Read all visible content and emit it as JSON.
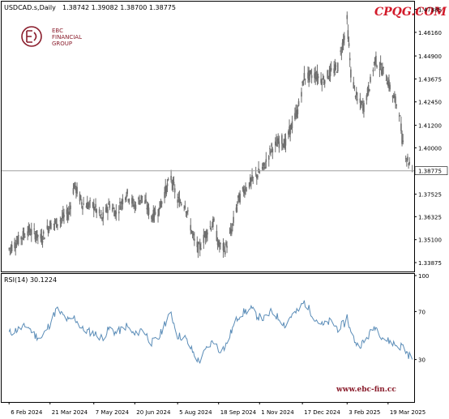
{
  "header": {
    "symbol": "USDCAD.s,Daily",
    "ohlc": "1.38742 1.39082 1.38700 1.38775",
    "watermark": "CPQG.COM"
  },
  "logo": {
    "line1": "EBC",
    "line2": "FINANCIAL",
    "line3": "GROUP"
  },
  "rsi_panel": {
    "label": "RSI(14) 30.1224",
    "website": "www.ebc-fin.cc"
  },
  "colors": {
    "candle": "#6f6f6f",
    "rsi": "#5b8db8",
    "grid": "#b0b0b0",
    "watermark": "#d21a2a",
    "logo": "#8a1d2c"
  },
  "chart_data": [
    {
      "type": "candlestick",
      "title": "USDCAD.s,Daily",
      "price_ticks": [
        1.47385,
        1.4616,
        1.449,
        1.43675,
        1.4245,
        1.412,
        1.4,
        1.37525,
        1.36325,
        1.351,
        1.33875
      ],
      "price_tick_labels": [
        "1.47385",
        "1.46160",
        "1.44900",
        "1.43675",
        "1.42450",
        "1.41200",
        "1.40000",
        "1.37525",
        "1.36325",
        "1.35100",
        "1.33875"
      ],
      "current_price": 1.38775,
      "current_price_label": "1.38775",
      "x_tick_labels": [
        "6 Feb 2024",
        "21 Mar 2024",
        "7 May 2024",
        "20 Jun 2024",
        "5 Aug 2024",
        "18 Sep 2024",
        "1 Nov 2024",
        "17 Dec 2024",
        "3 Feb 2025",
        "19 Mar 2025"
      ],
      "ylim": [
        1.334,
        1.478
      ],
      "close_path": [
        [
          "2024-02-06",
          1.346
        ],
        [
          "2024-02-15",
          1.35
        ],
        [
          "2024-02-26",
          1.356
        ],
        [
          "2024-03-05",
          1.354
        ],
        [
          "2024-03-12",
          1.3515
        ],
        [
          "2024-03-21",
          1.359
        ],
        [
          "2024-03-28",
          1.36
        ],
        [
          "2024-04-10",
          1.365
        ],
        [
          "2024-04-16",
          1.38
        ],
        [
          "2024-04-25",
          1.37
        ],
        [
          "2024-05-07",
          1.369
        ],
        [
          "2024-05-16",
          1.362
        ],
        [
          "2024-05-24",
          1.37
        ],
        [
          "2024-05-31",
          1.365
        ],
        [
          "2024-06-11",
          1.376
        ],
        [
          "2024-06-20",
          1.369
        ],
        [
          "2024-06-28",
          1.374
        ],
        [
          "2024-07-08",
          1.363
        ],
        [
          "2024-07-16",
          1.367
        ],
        [
          "2024-07-22",
          1.376
        ],
        [
          "2024-07-29",
          1.384
        ],
        [
          "2024-08-05",
          1.372
        ],
        [
          "2024-08-13",
          1.37
        ],
        [
          "2024-08-23",
          1.35
        ],
        [
          "2024-08-28",
          1.346
        ],
        [
          "2024-09-06",
          1.356
        ],
        [
          "2024-09-13",
          1.36
        ],
        [
          "2024-09-18",
          1.348
        ],
        [
          "2024-09-25",
          1.346
        ],
        [
          "2024-10-02",
          1.356
        ],
        [
          "2024-10-09",
          1.372
        ],
        [
          "2024-10-16",
          1.378
        ],
        [
          "2024-10-23",
          1.382
        ],
        [
          "2024-10-30",
          1.386
        ],
        [
          "2024-11-06",
          1.39
        ],
        [
          "2024-11-14",
          1.4
        ],
        [
          "2024-11-25",
          1.404
        ],
        [
          "2024-11-29",
          1.402
        ],
        [
          "2024-12-04",
          1.41
        ],
        [
          "2024-12-12",
          1.42
        ],
        [
          "2024-12-19",
          1.438
        ],
        [
          "2024-12-31",
          1.439
        ],
        [
          "2025-01-08",
          1.436
        ],
        [
          "2025-01-16",
          1.44
        ],
        [
          "2025-01-24",
          1.443
        ],
        [
          "2025-01-31",
          1.46
        ],
        [
          "2025-02-03",
          1.468
        ],
        [
          "2025-02-07",
          1.44
        ],
        [
          "2025-02-14",
          1.425
        ],
        [
          "2025-02-21",
          1.422
        ],
        [
          "2025-02-28",
          1.435
        ],
        [
          "2025-03-05",
          1.447
        ],
        [
          "2025-03-12",
          1.442
        ],
        [
          "2025-03-17",
          1.438
        ],
        [
          "2025-03-24",
          1.428
        ],
        [
          "2025-03-31",
          1.42
        ],
        [
          "2025-04-03",
          1.405
        ],
        [
          "2025-04-08",
          1.395
        ],
        [
          "2025-04-14",
          1.388
        ]
      ]
    },
    {
      "type": "line",
      "title": "RSI(14) 30.1224",
      "ylim": [
        0,
        100
      ],
      "ticks": [
        100,
        70,
        30
      ],
      "tick_labels": [
        "100",
        "70",
        "30"
      ],
      "current_value": 30.1224,
      "points": [
        [
          "2024-02-06",
          52
        ],
        [
          "2024-02-15",
          55
        ],
        [
          "2024-02-26",
          58
        ],
        [
          "2024-03-05",
          50
        ],
        [
          "2024-03-12",
          48
        ],
        [
          "2024-03-21",
          60
        ],
        [
          "2024-03-28",
          72
        ],
        [
          "2024-04-10",
          62
        ],
        [
          "2024-04-16",
          65
        ],
        [
          "2024-04-25",
          55
        ],
        [
          "2024-05-07",
          52
        ],
        [
          "2024-05-16",
          48
        ],
        [
          "2024-05-24",
          56
        ],
        [
          "2024-05-31",
          52
        ],
        [
          "2024-06-11",
          58
        ],
        [
          "2024-06-20",
          50
        ],
        [
          "2024-06-28",
          56
        ],
        [
          "2024-07-08",
          44
        ],
        [
          "2024-07-16",
          48
        ],
        [
          "2024-07-22",
          60
        ],
        [
          "2024-07-29",
          68
        ],
        [
          "2024-08-05",
          50
        ],
        [
          "2024-08-13",
          48
        ],
        [
          "2024-08-23",
          34
        ],
        [
          "2024-08-28",
          28
        ],
        [
          "2024-09-06",
          40
        ],
        [
          "2024-09-13",
          46
        ],
        [
          "2024-09-18",
          38
        ],
        [
          "2024-09-25",
          40
        ],
        [
          "2024-10-02",
          54
        ],
        [
          "2024-10-09",
          66
        ],
        [
          "2024-10-16",
          70
        ],
        [
          "2024-10-23",
          72
        ],
        [
          "2024-10-30",
          66
        ],
        [
          "2024-11-06",
          64
        ],
        [
          "2024-11-14",
          70
        ],
        [
          "2024-11-25",
          62
        ],
        [
          "2024-11-29",
          58
        ],
        [
          "2024-12-04",
          66
        ],
        [
          "2024-12-12",
          70
        ],
        [
          "2024-12-19",
          78
        ],
        [
          "2024-12-31",
          64
        ],
        [
          "2025-01-08",
          58
        ],
        [
          "2025-01-16",
          62
        ],
        [
          "2025-01-24",
          56
        ],
        [
          "2025-01-31",
          60
        ],
        [
          "2025-02-03",
          66
        ],
        [
          "2025-02-07",
          52
        ],
        [
          "2025-02-14",
          42
        ],
        [
          "2025-02-21",
          44
        ],
        [
          "2025-02-28",
          52
        ],
        [
          "2025-03-05",
          58
        ],
        [
          "2025-03-12",
          50
        ],
        [
          "2025-03-17",
          46
        ],
        [
          "2025-03-24",
          44
        ],
        [
          "2025-03-31",
          40
        ],
        [
          "2025-04-03",
          42
        ],
        [
          "2025-04-08",
          36
        ],
        [
          "2025-04-14",
          30
        ]
      ]
    }
  ]
}
